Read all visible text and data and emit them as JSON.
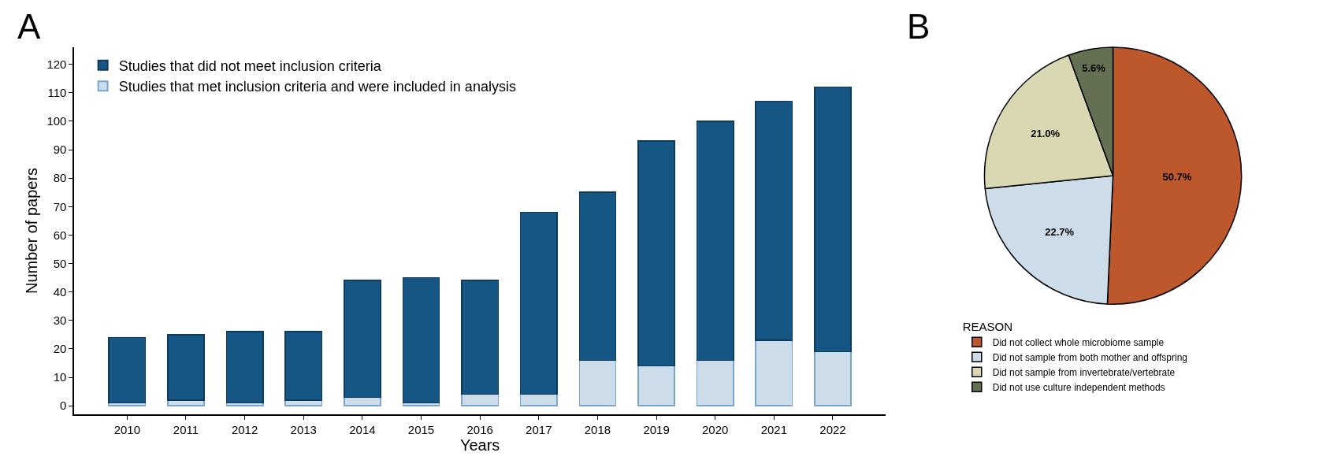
{
  "chart_data": [
    {
      "type": "bar",
      "stacked": true,
      "annotations": [
        "A"
      ],
      "xlabel": "Years",
      "ylabel": "Number of papers",
      "categories": [
        "2010",
        "2011",
        "2012",
        "2013",
        "2014",
        "2015",
        "2016",
        "2017",
        "2018",
        "2019",
        "2020",
        "2021",
        "2022"
      ],
      "series": [
        {
          "name": "Studies that met inclusion criteria and were included in analysis",
          "color": "#ccdde9",
          "values": [
            1,
            2,
            1,
            2,
            3,
            1,
            4,
            4,
            16,
            14,
            16,
            23,
            19
          ]
        },
        {
          "name": "Studies that did not meet inclusion criteria",
          "color": "#155684",
          "values": [
            23,
            23,
            25,
            24,
            41,
            44,
            40,
            64,
            59,
            79,
            84,
            84,
            93
          ]
        }
      ],
      "ylim": [
        -3,
        126
      ],
      "yticks": [
        0,
        10,
        20,
        30,
        40,
        50,
        60,
        70,
        80,
        90,
        100,
        110,
        120
      ],
      "legend": "top left"
    },
    {
      "type": "pie",
      "annotations": [
        "B"
      ],
      "legend_title": "REASON",
      "categories": [
        "Did not collect whole microbiome sample",
        "Did not sample from both mother and offspring",
        "Did not sample from invertebrate/vertebrate",
        "Did not use culture independent methods"
      ],
      "values": [
        50.7,
        22.7,
        21.0,
        5.6
      ],
      "value_labels": [
        "50.7%",
        "22.7%",
        "21.0%",
        "5.6%"
      ],
      "colors": [
        "#bd582c",
        "#ccdde9",
        "#dad8b3",
        "#637152"
      ],
      "legend": "bottom"
    }
  ]
}
